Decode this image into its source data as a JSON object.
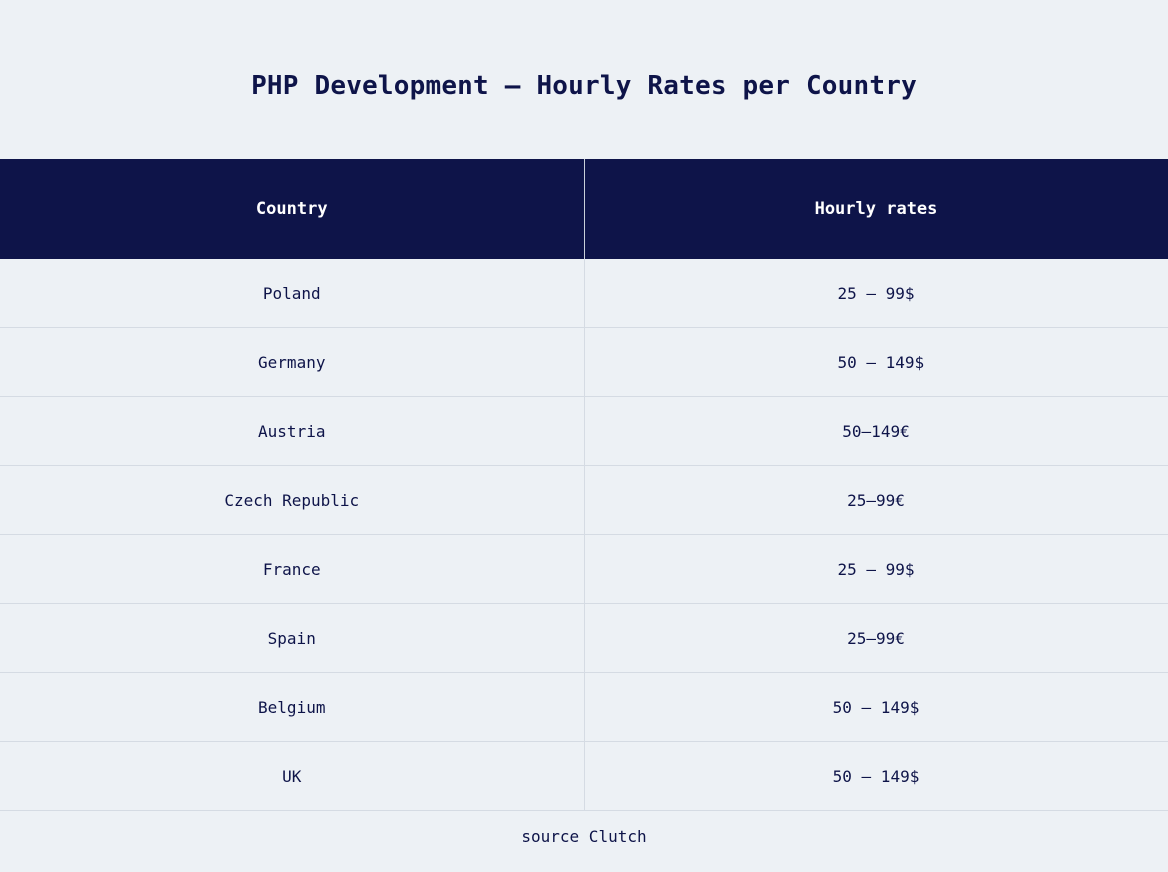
{
  "title": "PHP Development – Hourly Rates per Country",
  "table": {
    "headers": [
      "Country",
      "Hourly rates"
    ],
    "rows": [
      {
        "country": "Poland",
        "rate": "25 – 99$"
      },
      {
        "country": "Germany",
        "rate": " 50 – 149$"
      },
      {
        "country": "Austria",
        "rate": "50–149€"
      },
      {
        "country": "Czech Republic",
        "rate": "25–99€"
      },
      {
        "country": "France",
        "rate": "25 – 99$"
      },
      {
        "country": "Spain",
        "rate": "25–99€"
      },
      {
        "country": "Belgium",
        "rate": "50 – 149$"
      },
      {
        "country": "UK",
        "rate": "50 – 149$"
      }
    ]
  },
  "footer": {
    "source": "source Clutch"
  },
  "colors": {
    "background": "#edf1f5",
    "header_background": "#0e1449",
    "text": "#0e1449",
    "header_text": "#ffffff"
  }
}
